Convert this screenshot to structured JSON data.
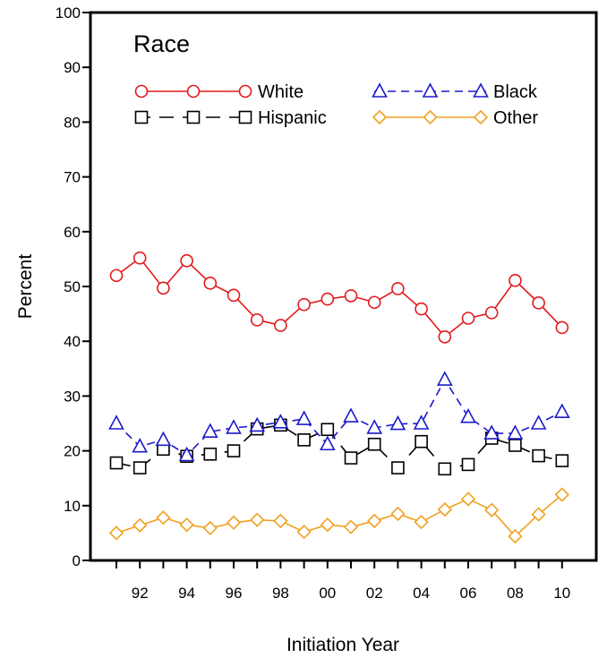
{
  "chart_data": {
    "type": "line",
    "title": "",
    "xlabel": "Initiation Year",
    "ylabel": "Percent",
    "xlim": [
      1990.2,
      2010.8
    ],
    "ylim": [
      0,
      100
    ],
    "x": [
      1991,
      1992,
      1993,
      1994,
      1995,
      1996,
      1997,
      1998,
      1999,
      2000,
      2001,
      2002,
      2003,
      2004,
      2005,
      2006,
      2007,
      2008,
      2009,
      2010
    ],
    "x_tick_values": [
      1992,
      1994,
      1996,
      1998,
      2000,
      2002,
      2004,
      2006,
      2008,
      2010
    ],
    "x_tick_labels": [
      "92",
      "94",
      "96",
      "98",
      "00",
      "02",
      "04",
      "06",
      "08",
      "10"
    ],
    "y_ticks": [
      0,
      10,
      20,
      30,
      40,
      50,
      60,
      70,
      80,
      90,
      100
    ],
    "grid": false,
    "legend": {
      "title": "Race",
      "placement": "top-left inside plot"
    },
    "series": [
      {
        "name": "White",
        "color": "#e31a1c",
        "marker": "circle",
        "dash": "solid",
        "values": [
          52,
          55.2,
          49.7,
          54.7,
          50.6,
          48.4,
          43.9,
          42.9,
          46.7,
          47.7,
          48.3,
          47.1,
          49.6,
          45.9,
          40.8,
          44.2,
          45.2,
          51.1,
          47,
          42.5
        ]
      },
      {
        "name": "Black",
        "color": "#1a1acc",
        "marker": "triangle",
        "dash": "dashed",
        "values": [
          25,
          20.8,
          22,
          19.2,
          23.5,
          24.2,
          24.6,
          25.2,
          25.8,
          21.2,
          26.3,
          24.2,
          24.9,
          25,
          33,
          26.2,
          23.2,
          23.2,
          25,
          27.1
        ]
      },
      {
        "name": "Hispanic",
        "color": "#000000",
        "marker": "square",
        "dash": "longdash",
        "values": [
          17.8,
          16.9,
          20.3,
          19,
          19.4,
          20,
          24,
          24.7,
          22,
          23.9,
          18.7,
          21.2,
          16.9,
          21.7,
          16.7,
          17.5,
          22.3,
          21,
          19.1,
          18.2
        ]
      },
      {
        "name": "Other",
        "color": "#f0a020",
        "marker": "diamond",
        "dash": "solid",
        "values": [
          5,
          6.4,
          7.8,
          6.5,
          5.9,
          6.9,
          7.4,
          7.2,
          5.2,
          6.5,
          6.1,
          7.2,
          8.5,
          7,
          9.3,
          11.2,
          9.2,
          4.4,
          8.4,
          12
        ]
      }
    ]
  }
}
